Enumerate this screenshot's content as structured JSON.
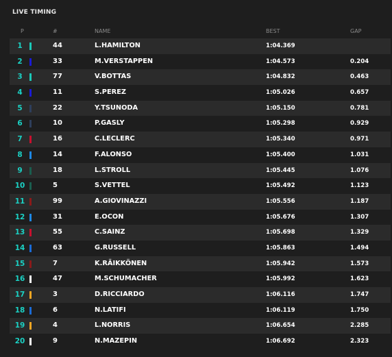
{
  "title": "LIVE TIMING",
  "columns": {
    "pos": "P",
    "num": "#",
    "name": "NAME",
    "best": "BEST",
    "gap": "GAP"
  },
  "rows": [
    {
      "pos": "1",
      "num": "44",
      "name": "L.HAMILTON",
      "best": "1:04.369",
      "gap": "",
      "color": "#1bc9b8"
    },
    {
      "pos": "2",
      "num": "33",
      "name": "M.VERSTAPPEN",
      "best": "1:04.573",
      "gap": "0.204",
      "color": "#1a1ad6"
    },
    {
      "pos": "3",
      "num": "77",
      "name": "V.BOTTAS",
      "best": "1:04.832",
      "gap": "0.463",
      "color": "#1bc9b8"
    },
    {
      "pos": "4",
      "num": "11",
      "name": "S.PEREZ",
      "best": "1:05.026",
      "gap": "0.657",
      "color": "#1a1ad6"
    },
    {
      "pos": "5",
      "num": "22",
      "name": "Y.TSUNODA",
      "best": "1:05.150",
      "gap": "0.781",
      "color": "#2e3f5c"
    },
    {
      "pos": "6",
      "num": "10",
      "name": "P.GASLY",
      "best": "1:05.298",
      "gap": "0.929",
      "color": "#2e3f5c"
    },
    {
      "pos": "7",
      "num": "16",
      "name": "C.LECLERC",
      "best": "1:05.340",
      "gap": "0.971",
      "color": "#c8102e"
    },
    {
      "pos": "8",
      "num": "14",
      "name": "F.ALONSO",
      "best": "1:05.400",
      "gap": "1.031",
      "color": "#1e88e5"
    },
    {
      "pos": "9",
      "num": "18",
      "name": "L.STROLL",
      "best": "1:05.445",
      "gap": "1.076",
      "color": "#1a5e4f"
    },
    {
      "pos": "10",
      "num": "5",
      "name": "S.VETTEL",
      "best": "1:05.492",
      "gap": "1.123",
      "color": "#1a5e4f"
    },
    {
      "pos": "11",
      "num": "99",
      "name": "A.GIOVINAZZI",
      "best": "1:05.556",
      "gap": "1.187",
      "color": "#8b1a1a"
    },
    {
      "pos": "12",
      "num": "31",
      "name": "E.OCON",
      "best": "1:05.676",
      "gap": "1.307",
      "color": "#1e88e5"
    },
    {
      "pos": "13",
      "num": "55",
      "name": "C.SAINZ",
      "best": "1:05.698",
      "gap": "1.329",
      "color": "#c8102e"
    },
    {
      "pos": "14",
      "num": "63",
      "name": "G.RUSSELL",
      "best": "1:05.863",
      "gap": "1.494",
      "color": "#1a6bd6"
    },
    {
      "pos": "15",
      "num": "7",
      "name": "K.RÄIKKÖNEN",
      "best": "1:05.942",
      "gap": "1.573",
      "color": "#8b1a1a"
    },
    {
      "pos": "16",
      "num": "47",
      "name": "M.SCHUMACHER",
      "best": "1:05.992",
      "gap": "1.623",
      "color": "#ffffff"
    },
    {
      "pos": "17",
      "num": "3",
      "name": "D.RICCIARDO",
      "best": "1:06.116",
      "gap": "1.747",
      "color": "#f5a623"
    },
    {
      "pos": "18",
      "num": "6",
      "name": "N.LATIFI",
      "best": "1:06.119",
      "gap": "1.750",
      "color": "#1a6bd6"
    },
    {
      "pos": "19",
      "num": "4",
      "name": "L.NORRIS",
      "best": "1:06.654",
      "gap": "2.285",
      "color": "#f5a623"
    },
    {
      "pos": "20",
      "num": "9",
      "name": "N.MAZEPIN",
      "best": "1:06.692",
      "gap": "2.323",
      "color": "#ffffff"
    }
  ]
}
